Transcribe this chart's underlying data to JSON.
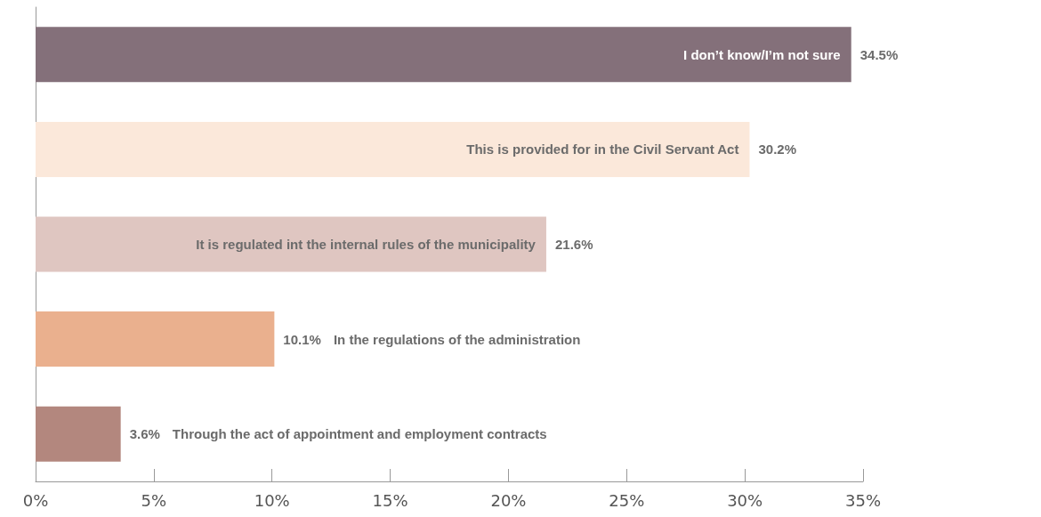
{
  "chart_data": {
    "type": "bar",
    "orientation": "horizontal",
    "categories": [
      "I don’t know/I’m not sure",
      "This is provided for in the Civil Servant Act",
      "It is regulated int the internal rules of the municipality",
      "In the regulations of the administration",
      "Through the act of appointment and employment contracts"
    ],
    "values": [
      34.5,
      30.2,
      21.6,
      10.1,
      3.6
    ],
    "value_labels": [
      "34.5%",
      "30.2%",
      "21.6%",
      "10.1%",
      "3.6%"
    ],
    "colors": [
      "#84707a",
      "#fbe8da",
      "#dfc6c1",
      "#eab08e",
      "#b3877e"
    ],
    "xlim": [
      0,
      35
    ],
    "xticks": [
      {
        "value": 0,
        "label": "0%"
      },
      {
        "value": 5,
        "label": "5%"
      },
      {
        "value": 10,
        "label": "10%"
      },
      {
        "value": 15,
        "label": "15%"
      },
      {
        "value": 20,
        "label": "20%"
      },
      {
        "value": 25,
        "label": "25%"
      },
      {
        "value": 30,
        "label": "30%"
      },
      {
        "value": 35,
        "label": "35%"
      }
    ],
    "grid": false
  }
}
